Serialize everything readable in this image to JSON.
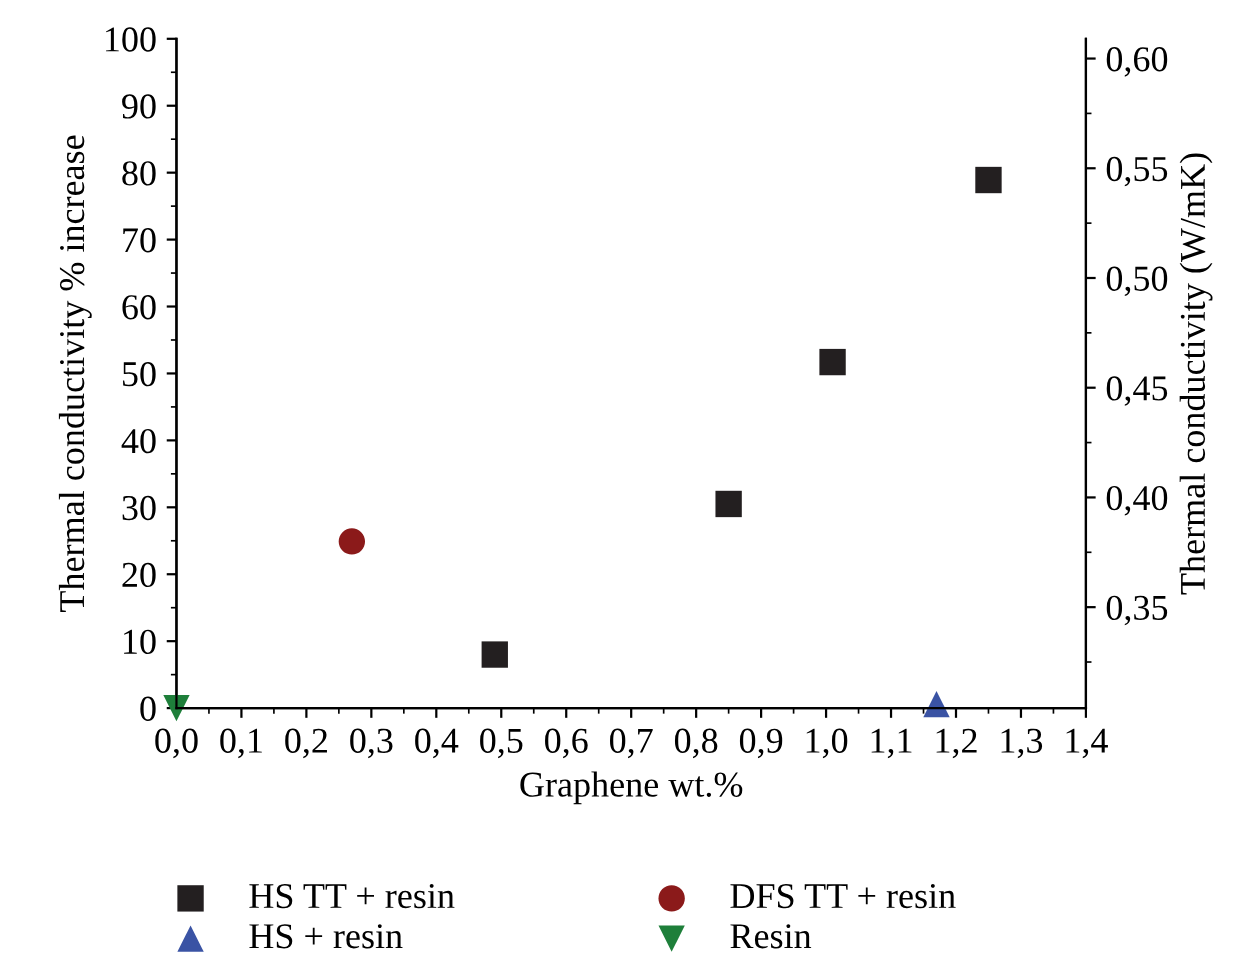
{
  "chart_data": {
    "type": "scatter",
    "xlabel": "Graphene wt.%",
    "ylabel": "Thermal conductivity % increase",
    "y2label": "Thermal conductivity (W/mK)",
    "xlim": [
      0,
      1.4
    ],
    "ylim": [
      0,
      100
    ],
    "y2lim": [
      0.304,
      0.609
    ],
    "xticks": [
      {
        "value": 0,
        "label": "0,0"
      },
      {
        "value": 0.1,
        "label": "0,1"
      },
      {
        "value": 0.2,
        "label": "0,2"
      },
      {
        "value": 0.3,
        "label": "0,3"
      },
      {
        "value": 0.4,
        "label": "0,4"
      },
      {
        "value": 0.5,
        "label": "0,5"
      },
      {
        "value": 0.6,
        "label": "0,6"
      },
      {
        "value": 0.7,
        "label": "0,7"
      },
      {
        "value": 0.8,
        "label": "0,8"
      },
      {
        "value": 0.9,
        "label": "0,9"
      },
      {
        "value": 1.0,
        "label": "1,0"
      },
      {
        "value": 1.1,
        "label": "1,1"
      },
      {
        "value": 1.2,
        "label": "1,2"
      },
      {
        "value": 1.3,
        "label": "1,3"
      },
      {
        "value": 1.4,
        "label": "1,4"
      }
    ],
    "yticks": [
      0,
      10,
      20,
      30,
      40,
      50,
      60,
      70,
      80,
      90,
      100
    ],
    "y2ticks": [
      {
        "value": 0.35,
        "label": "0,35"
      },
      {
        "value": 0.4,
        "label": "0,40"
      },
      {
        "value": 0.45,
        "label": "0,45"
      },
      {
        "value": 0.5,
        "label": "0,50"
      },
      {
        "value": 0.55,
        "label": "0,55"
      },
      {
        "value": 0.6,
        "label": "0,60"
      }
    ],
    "grid": false,
    "legend": "bottom",
    "series": [
      {
        "name": "HS TT + resin",
        "color": "#231f20",
        "marker": "square",
        "x": [
          0.49,
          0.85,
          1.01,
          1.25
        ],
        "values": [
          8,
          30.5,
          51.7,
          78.9
        ]
      },
      {
        "name": "DFS TT + resin",
        "color": "#8b1a1a",
        "marker": "circle",
        "x": [
          0.27
        ],
        "values": [
          24.9
        ]
      },
      {
        "name": "HS + resin",
        "color": "#3a53a4",
        "marker": "triangle",
        "x": [
          1.17
        ],
        "values": [
          0.6
        ]
      },
      {
        "name": "Resin",
        "color": "#1e7f3a",
        "marker": "triangle_down",
        "x": [
          0
        ],
        "values": [
          0
        ]
      }
    ]
  }
}
